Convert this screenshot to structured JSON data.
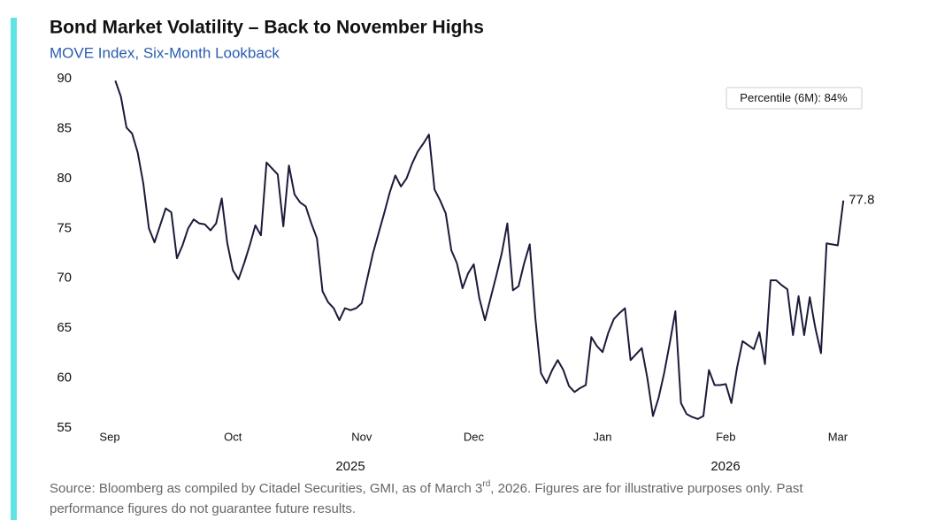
{
  "chart_data": {
    "type": "line",
    "title": "Bond Market Volatility – Back to November Highs",
    "subtitle": "MOVE Index, Six-Month Lookback",
    "annotation": "Percentile (6M): 84%",
    "categories": [
      "Sep",
      null,
      null,
      null,
      null,
      null,
      null,
      null,
      null,
      null,
      null,
      null,
      null,
      null,
      null,
      null,
      null,
      null,
      null,
      null,
      null,
      null,
      "Oct",
      null,
      null,
      null,
      null,
      null,
      null,
      null,
      null,
      null,
      null,
      null,
      null,
      null,
      null,
      null,
      null,
      null,
      null,
      null,
      null,
      null,
      null,
      "Nov",
      null,
      null,
      null,
      null,
      null,
      null,
      null,
      null,
      null,
      null,
      null,
      null,
      null,
      null,
      null,
      null,
      null,
      null,
      null,
      "Dec",
      null,
      null,
      null,
      null,
      null,
      null,
      null,
      null,
      null,
      null,
      null,
      null,
      null,
      null,
      null,
      null,
      null,
      null,
      null,
      null,
      null,
      null,
      "Jan",
      null,
      null,
      null,
      null,
      null,
      null,
      null,
      null,
      null,
      null,
      null,
      null,
      null,
      null,
      null,
      null,
      null,
      null,
      null,
      null,
      null,
      "Feb",
      null,
      null,
      null,
      null,
      null,
      null,
      null,
      null,
      null,
      null,
      null,
      null,
      null,
      null,
      null,
      null,
      null,
      null,
      null,
      "Mar",
      null
    ],
    "x_group_labels": [
      "2025",
      "2026"
    ],
    "series": [
      {
        "name": "MOVE Index",
        "color": "#1b1b3a",
        "values": [
          null,
          89.8,
          88.2,
          85.1,
          84.5,
          82.6,
          79.5,
          75,
          73.6,
          75.3,
          77,
          76.6,
          72,
          73.3,
          75,
          75.9,
          75.5,
          75.4,
          74.8,
          75.5,
          78,
          73.5,
          70.8,
          69.9,
          71.5,
          73.3,
          75.3,
          74.3,
          81.6,
          81,
          80.4,
          75.2,
          81.3,
          78.4,
          77.6,
          77.2,
          75.5,
          74,
          68.7,
          67.6,
          67,
          65.8,
          67,
          66.8,
          67,
          67.5,
          70,
          72.5,
          74.5,
          76.5,
          78.6,
          80.3,
          79.2,
          80,
          81.5,
          82.7,
          83.5,
          84.4,
          78.9,
          77.8,
          76.5,
          72.8,
          71.5,
          69,
          70.5,
          71.4,
          68,
          65.8,
          68,
          70.2,
          72.5,
          75.5,
          68.8,
          69.2,
          71.5,
          73.4,
          66,
          60.5,
          59.5,
          60.8,
          61.8,
          60.8,
          59.2,
          58.6,
          59,
          59.3,
          64.1,
          63.2,
          62.6,
          64.5,
          65.9,
          66.5,
          67,
          61.8,
          62.4,
          63,
          60,
          56.2,
          58,
          60.5,
          63.5,
          66.7,
          57.5,
          56.4,
          56.1,
          55.9,
          56.2,
          60.8,
          59.3,
          59.3,
          59.4,
          57.5,
          61,
          63.7,
          63.3,
          62.9,
          64.6,
          61.4,
          69.8,
          69.8,
          69.3,
          68.9,
          64.3,
          68.2,
          64.3,
          68.1,
          65,
          62.5,
          73.5,
          73.4,
          73.3,
          77.8
        ]
      }
    ],
    "ylim": [
      55,
      90
    ],
    "yticks": [
      55,
      60,
      65,
      70,
      75,
      80,
      85,
      90
    ],
    "grid": false,
    "source": [
      "Source: Bloomberg as compiled by Citadel Securities, GMI, as of March 3",
      "rd",
      ", 2026. Figures are for illustrative purposes only. Past",
      "performance figures do not guarantee future results."
    ]
  }
}
